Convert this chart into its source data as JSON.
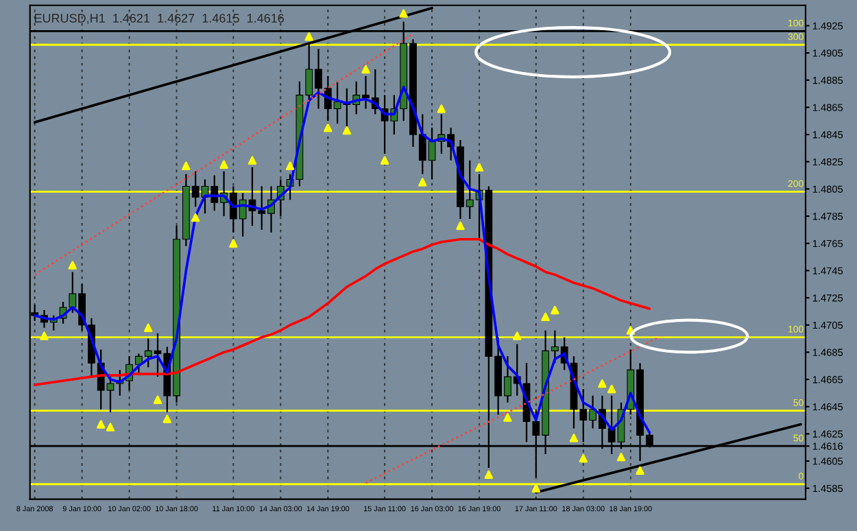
{
  "chart_data": {
    "type": "candlestick",
    "title": "EURUSD,H1  1.4621  1.4627  1.4615  1.4616",
    "categories": [
      "8 Jan 2008",
      null,
      null,
      null,
      null,
      "9 Jan 10:00",
      null,
      null,
      null,
      null,
      "10 Jan 02:00",
      null,
      null,
      null,
      null,
      "10 Jan 18:00",
      null,
      null,
      null,
      null,
      null,
      "11 Jan 10:00",
      null,
      null,
      null,
      null,
      "14 Jan 03:00",
      null,
      null,
      null,
      null,
      "14 Jan 19:00",
      null,
      null,
      null,
      null,
      null,
      "15 Jan 11:00",
      null,
      null,
      null,
      null,
      "16 Jan 03:00",
      null,
      null,
      null,
      null,
      "16 Jan 19:00",
      null,
      null,
      null,
      null,
      null,
      "17 Jan 11:00",
      null,
      null,
      null,
      null,
      "18 Jan 03:00",
      null,
      null,
      null,
      null,
      "18 Jan 19:00",
      null,
      null,
      null,
      null,
      null,
      null,
      null,
      null,
      null,
      null,
      null,
      null,
      null,
      null,
      null,
      null,
      null,
      null
    ],
    "ohlc": [
      [
        1.4714,
        1.472,
        1.4708,
        1.4712
      ],
      [
        1.4712,
        1.4716,
        1.4703,
        1.4707
      ],
      [
        1.4707,
        1.4712,
        1.4701,
        1.471
      ],
      [
        1.471,
        1.4722,
        1.4706,
        1.4718
      ],
      [
        1.4718,
        1.4744,
        1.4714,
        1.4728
      ],
      [
        1.4728,
        1.4735,
        1.4701,
        1.4705
      ],
      [
        1.4705,
        1.471,
        1.4667,
        1.4677
      ],
      [
        1.4677,
        1.4687,
        1.4643,
        1.4657
      ],
      [
        1.4657,
        1.4667,
        1.4641,
        1.4662
      ],
      [
        1.4662,
        1.4672,
        1.4653,
        1.4664
      ],
      [
        1.4664,
        1.4682,
        1.4657,
        1.4676
      ],
      [
        1.4676,
        1.4684,
        1.467,
        1.4682
      ],
      [
        1.4682,
        1.4695,
        1.4674,
        1.4686
      ],
      [
        1.4686,
        1.4699,
        1.4667,
        1.4684
      ],
      [
        1.4684,
        1.4689,
        1.4641,
        1.4653
      ],
      [
        1.4653,
        1.4778,
        1.4648,
        1.4768
      ],
      [
        1.4768,
        1.4816,
        1.4763,
        1.4807
      ],
      [
        1.4807,
        1.4818,
        1.4792,
        1.4799
      ],
      [
        1.4799,
        1.4812,
        1.4787,
        1.4807
      ],
      [
        1.4807,
        1.4815,
        1.4789,
        1.4795
      ],
      [
        1.4795,
        1.4818,
        1.4785,
        1.4802
      ],
      [
        1.4802,
        1.4807,
        1.4773,
        1.4783
      ],
      [
        1.4783,
        1.4802,
        1.477,
        1.4797
      ],
      [
        1.4797,
        1.4821,
        1.4778,
        1.4789
      ],
      [
        1.4789,
        1.4807,
        1.4775,
        1.4787
      ],
      [
        1.4787,
        1.4807,
        1.4773,
        1.4797
      ],
      [
        1.4797,
        1.4812,
        1.4785,
        1.4807
      ],
      [
        1.4807,
        1.4816,
        1.4797,
        1.4812
      ],
      [
        1.4812,
        1.4884,
        1.4807,
        1.4874
      ],
      [
        1.4874,
        1.4912,
        1.4869,
        1.4893
      ],
      [
        1.4893,
        1.4908,
        1.4864,
        1.4879
      ],
      [
        1.4879,
        1.4888,
        1.4855,
        1.4864
      ],
      [
        1.4864,
        1.4884,
        1.4853,
        1.4869
      ],
      [
        1.4869,
        1.4879,
        1.485,
        1.4867
      ],
      [
        1.4867,
        1.4884,
        1.486,
        1.4874
      ],
      [
        1.4874,
        1.4888,
        1.4864,
        1.4872
      ],
      [
        1.4872,
        1.4893,
        1.486,
        1.4864
      ],
      [
        1.4864,
        1.4874,
        1.4831,
        1.4855
      ],
      [
        1.4855,
        1.4874,
        1.4845,
        1.4864
      ],
      [
        1.4864,
        1.4928,
        1.4855,
        1.4912
      ],
      [
        1.4912,
        1.4915,
        1.4836,
        1.4845
      ],
      [
        1.4845,
        1.486,
        1.4816,
        1.4826
      ],
      [
        1.4826,
        1.485,
        1.4812,
        1.484
      ],
      [
        1.484,
        1.486,
        1.4831,
        1.4845
      ],
      [
        1.4845,
        1.485,
        1.4826,
        1.4836
      ],
      [
        1.4836,
        1.4841,
        1.4783,
        1.4792
      ],
      [
        1.4792,
        1.4826,
        1.4783,
        1.4797
      ],
      [
        1.4797,
        1.4816,
        1.4768,
        1.4804
      ],
      [
        1.4804,
        1.4807,
        1.46,
        1.4682
      ],
      [
        1.4682,
        1.4696,
        1.4639,
        1.4653
      ],
      [
        1.4653,
        1.4682,
        1.4648,
        1.4667
      ],
      [
        1.4667,
        1.4691,
        1.4653,
        1.4662
      ],
      [
        1.4662,
        1.4677,
        1.4619,
        1.4634
      ],
      [
        1.4634,
        1.4643,
        1.4593,
        1.4624
      ],
      [
        1.4624,
        1.4701,
        1.461,
        1.4686
      ],
      [
        1.4686,
        1.4701,
        1.4677,
        1.4689
      ],
      [
        1.4689,
        1.4696,
        1.4672,
        1.4677
      ],
      [
        1.4677,
        1.4682,
        1.4629,
        1.4643
      ],
      [
        1.4643,
        1.4658,
        1.4619,
        1.4635
      ],
      [
        1.4635,
        1.4653,
        1.4629,
        1.4643
      ],
      [
        1.4643,
        1.4653,
        1.4614,
        1.4629
      ],
      [
        1.4629,
        1.4653,
        1.461,
        1.4619
      ],
      [
        1.4619,
        1.4648,
        1.4614,
        1.4643
      ],
      [
        1.4643,
        1.4687,
        1.4639,
        1.4672
      ],
      [
        1.4672,
        1.4677,
        1.4605,
        1.4624
      ],
      [
        1.4624,
        1.4627,
        1.4615,
        1.4616
      ],
      null,
      null,
      null,
      null,
      null,
      null,
      null,
      null,
      null,
      null,
      null,
      null,
      null,
      null,
      null,
      null
    ],
    "series": [
      {
        "type": "line",
        "color": "#ff0000",
        "values": [
          1.4661,
          1.4662,
          1.4663,
          1.4664,
          1.4665,
          1.4666,
          1.4667,
          1.4668,
          1.4668,
          1.4668,
          1.4669,
          1.4669,
          1.4669,
          1.4669,
          1.4669,
          1.467,
          1.4673,
          1.4676,
          1.4679,
          1.4682,
          1.4685,
          1.4687,
          1.469,
          1.4693,
          1.4696,
          1.4698,
          1.4701,
          1.4705,
          1.4708,
          1.4711,
          1.4716,
          1.4721,
          1.4727,
          1.4733,
          1.4737,
          1.4741,
          1.4746,
          1.475,
          1.4753,
          1.4756,
          1.4759,
          1.4761,
          1.4764,
          1.4766,
          1.4767,
          1.4768,
          1.4768,
          1.4768,
          1.4764,
          1.4761,
          1.4757,
          1.4754,
          1.4751,
          1.4748,
          1.4744,
          1.4742,
          1.4739,
          1.4736,
          1.4734,
          1.4732,
          1.4729,
          1.4726,
          1.4723,
          1.4721,
          1.4719,
          1.4717,
          null,
          null,
          null,
          null,
          null,
          null,
          null,
          null,
          null,
          null,
          null,
          null,
          null,
          null,
          null,
          null
        ]
      },
      {
        "type": "line",
        "color": "#0000ff",
        "values": [
          1.4712,
          1.471,
          1.4709,
          1.4712,
          1.4718,
          1.4712,
          1.4695,
          1.4675,
          1.4665,
          1.4663,
          1.4668,
          1.4675,
          1.468,
          1.4682,
          1.467,
          1.4695,
          1.4745,
          1.4785,
          1.48,
          1.48,
          1.48,
          1.4792,
          1.4793,
          1.4792,
          1.479,
          1.4793,
          1.48,
          1.4806,
          1.484,
          1.487,
          1.4876,
          1.4872,
          1.487,
          1.4868,
          1.487,
          1.4871,
          1.4868,
          1.486,
          1.486,
          1.488,
          1.4865,
          1.4845,
          1.484,
          1.4842,
          1.484,
          1.4815,
          1.4805,
          1.4803,
          1.474,
          1.469,
          1.4675,
          1.4668,
          1.465,
          1.4635,
          1.466,
          1.468,
          1.4684,
          1.4665,
          1.4648,
          1.4644,
          1.4638,
          1.4628,
          1.4635,
          1.4655,
          1.4638,
          1.4626,
          null,
          null,
          null,
          null,
          null,
          null,
          null,
          null,
          null,
          null,
          null,
          null,
          null,
          null,
          null,
          null
        ]
      },
      {
        "type": "line",
        "color": "#000000",
        "values": [
          1.4854,
          null,
          null,
          null,
          null,
          null,
          null,
          null,
          null,
          null,
          null,
          null,
          null,
          null,
          null,
          null,
          null,
          null,
          null,
          null,
          null,
          null,
          null,
          null,
          null,
          null,
          null,
          null,
          null,
          null,
          null,
          null,
          null,
          null,
          null,
          null,
          null,
          null,
          null,
          null,
          null,
          null,
          1.4938,
          null,
          null,
          null,
          null,
          null,
          null,
          null,
          null,
          null,
          null,
          null,
          null,
          null,
          null,
          null,
          null,
          null,
          null,
          null,
          null,
          null,
          null,
          null,
          null,
          null,
          null,
          null,
          null,
          null,
          null,
          null,
          null,
          null,
          null,
          null,
          null,
          null,
          null,
          null
        ]
      },
      {
        "type": "line",
        "color": "#000000",
        "values": [
          null,
          null,
          null,
          null,
          null,
          null,
          null,
          null,
          null,
          null,
          null,
          null,
          null,
          null,
          null,
          null,
          null,
          null,
          null,
          null,
          null,
          null,
          null,
          null,
          null,
          null,
          null,
          null,
          null,
          null,
          null,
          null,
          null,
          null,
          null,
          null,
          null,
          null,
          null,
          null,
          null,
          null,
          null,
          null,
          null,
          null,
          null,
          null,
          null,
          null,
          null,
          null,
          null,
          1.4582,
          null,
          null,
          null,
          null,
          null,
          null,
          null,
          null,
          null,
          null,
          null,
          null,
          null,
          null,
          null,
          null,
          null,
          null,
          null,
          null,
          null,
          null,
          null,
          null,
          null,
          null,
          null,
          1.4632
        ]
      },
      {
        "type": "line",
        "color": "#ff4040",
        "line_style": "dotted",
        "values": [
          1.4742,
          null,
          null,
          null,
          null,
          null,
          null,
          null,
          null,
          null,
          null,
          null,
          null,
          null,
          null,
          null,
          null,
          null,
          null,
          null,
          null,
          null,
          null,
          null,
          null,
          null,
          null,
          null,
          null,
          null,
          null,
          null,
          null,
          null,
          null,
          null,
          null,
          null,
          null,
          null,
          1.4919,
          null,
          null,
          null,
          null,
          null,
          null,
          null,
          null,
          null,
          null,
          null,
          null,
          null,
          null,
          null,
          null,
          null,
          null,
          null,
          null,
          null,
          null,
          null,
          null,
          null,
          null,
          null,
          null,
          null,
          null,
          null,
          null,
          null,
          null,
          null,
          null,
          null,
          null,
          null,
          null,
          null
        ]
      },
      {
        "type": "line",
        "color": "#ff4040",
        "line_style": "dotted",
        "values": [
          null,
          null,
          null,
          null,
          null,
          null,
          null,
          null,
          null,
          null,
          null,
          null,
          null,
          null,
          null,
          null,
          null,
          null,
          null,
          null,
          null,
          null,
          null,
          null,
          null,
          null,
          null,
          null,
          null,
          null,
          null,
          null,
          null,
          null,
          null,
          1.4589,
          null,
          null,
          null,
          null,
          null,
          null,
          null,
          null,
          null,
          null,
          null,
          null,
          null,
          null,
          null,
          null,
          null,
          null,
          null,
          null,
          null,
          null,
          null,
          null,
          null,
          null,
          null,
          null,
          null,
          null,
          1.4696,
          null,
          null,
          null,
          null,
          null,
          null,
          null,
          null,
          null,
          null,
          null,
          null,
          null,
          null,
          null
        ]
      },
      {
        "type": "scatter",
        "color": "#ffff00",
        "marker": "triangle",
        "values": [
          null,
          null,
          null,
          null,
          1.4749,
          null,
          null,
          null,
          null,
          null,
          null,
          null,
          1.4703,
          null,
          null,
          null,
          1.4822,
          null,
          null,
          null,
          1.4823,
          null,
          null,
          1.4826,
          null,
          null,
          null,
          1.4822,
          null,
          1.4917,
          null,
          null,
          null,
          null,
          null,
          1.4893,
          null,
          null,
          null,
          1.4934,
          null,
          null,
          null,
          1.4864,
          null,
          null,
          null,
          1.4821,
          null,
          null,
          null,
          1.4697,
          null,
          null,
          1.4711,
          1.4716,
          null,
          null,
          null,
          null,
          1.4662,
          1.4658,
          null,
          1.4701,
          null,
          null,
          null,
          null,
          null,
          null,
          null,
          null,
          null,
          null,
          null,
          null,
          null,
          null,
          null,
          null,
          null,
          null
        ]
      },
      {
        "type": "scatter",
        "color": "#ffff00",
        "marker": "triangle",
        "values": [
          null,
          1.4697,
          null,
          null,
          null,
          null,
          null,
          1.4632,
          1.463,
          null,
          null,
          null,
          null,
          1.465,
          1.4636,
          null,
          null,
          1.4784,
          null,
          null,
          null,
          1.4765,
          null,
          null,
          null,
          null,
          null,
          null,
          null,
          null,
          null,
          1.485,
          null,
          1.4848,
          null,
          null,
          null,
          1.4826,
          null,
          null,
          null,
          1.481,
          null,
          null,
          null,
          1.4778,
          null,
          null,
          1.4595,
          null,
          1.4637,
          null,
          null,
          1.4585,
          null,
          null,
          null,
          1.4622,
          1.4607,
          null,
          null,
          null,
          1.4608,
          null,
          1.4598,
          null,
          null,
          null,
          null,
          null,
          null,
          null,
          null,
          null,
          null,
          null,
          null,
          null,
          null,
          null,
          null,
          null
        ]
      }
    ],
    "ref_lines": [
      {
        "axis": "y",
        "value": 1.4921,
        "color": "#000000"
      },
      {
        "axis": "y",
        "value": 1.4616,
        "color": "#000000"
      },
      {
        "axis": "y",
        "value": 1.4911,
        "color": "#ffff00"
      },
      {
        "axis": "y",
        "value": 1.4803,
        "color": "#ffff00"
      },
      {
        "axis": "y",
        "value": 1.4696,
        "color": "#ffff00"
      },
      {
        "axis": "y",
        "value": 1.4642,
        "color": "#ffff00"
      },
      {
        "axis": "y",
        "value": 1.4588,
        "color": "#ffff00"
      }
    ],
    "annotations": [
      {
        "text": "100",
        "y": 1.4921
      },
      {
        "text": "300",
        "y": 1.4911
      },
      {
        "text": "200",
        "y": 1.4803
      },
      {
        "text": "100",
        "y": 1.4696
      },
      {
        "text": "50",
        "y": 1.4642
      },
      {
        "text": "50",
        "y": 1.4616
      },
      {
        "text": "0",
        "y": 1.4588
      }
    ],
    "ylim": [
      1.4577,
      1.494
    ],
    "yticks": [
      {
        "value": 1.4585,
        "label": "1.4585"
      },
      {
        "value": 1.4605,
        "label": "1.4605"
      },
      {
        "value": 1.4616,
        "label": "1.4616"
      },
      {
        "value": 1.4625,
        "label": "1.4625"
      },
      {
        "value": 1.4645,
        "label": "1.4645"
      },
      {
        "value": 1.4665,
        "label": "1.4665"
      },
      {
        "value": 1.4685,
        "label": "1.4685"
      },
      {
        "value": 1.4705,
        "label": "1.4705"
      },
      {
        "value": 1.4725,
        "label": "1.4725"
      },
      {
        "value": 1.4745,
        "label": "1.4745"
      },
      {
        "value": 1.4765,
        "label": "1.4765"
      },
      {
        "value": 1.4785,
        "label": "1.4785"
      },
      {
        "value": 1.4805,
        "label": "1.4805"
      },
      {
        "value": 1.4825,
        "label": "1.4825"
      },
      {
        "value": 1.4845,
        "label": "1.4845"
      },
      {
        "value": 1.4865,
        "label": "1.4865"
      },
      {
        "value": 1.4885,
        "label": "1.4885"
      },
      {
        "value": 1.4905,
        "label": "1.4905"
      },
      {
        "value": 1.4925,
        "label": "1.4925"
      }
    ],
    "grid": "x"
  }
}
